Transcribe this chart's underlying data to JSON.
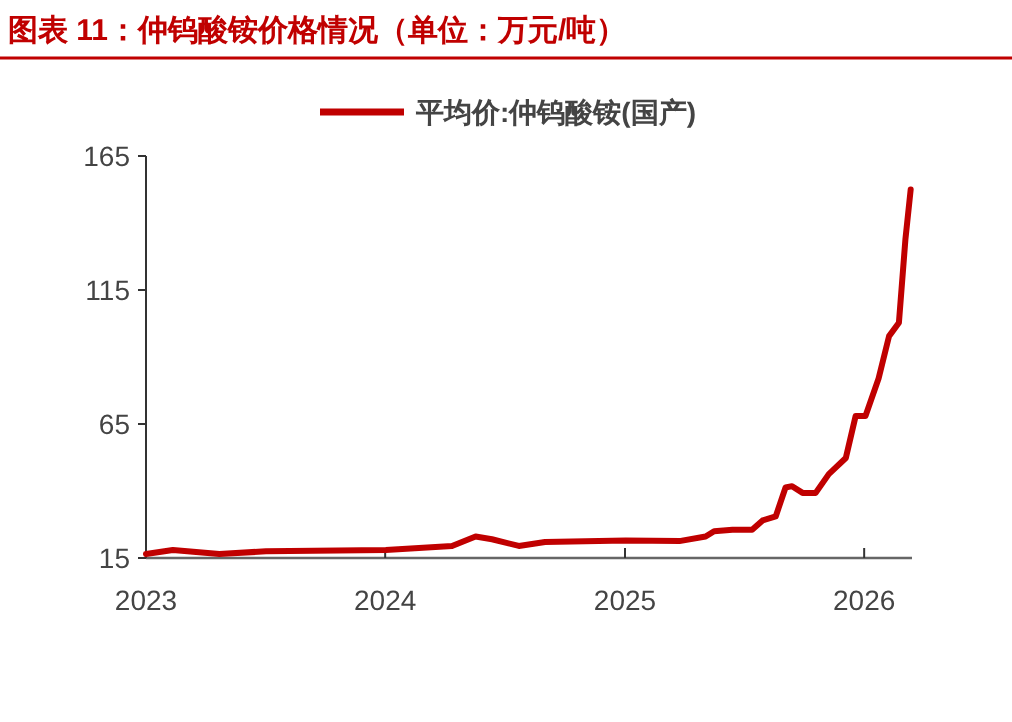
{
  "chart_data": {
    "type": "line",
    "title": "图表 11：仲钨酸铵价格情况（单位：万元/吨）",
    "x": [
      "2023-01-01",
      "2023-02-11",
      "2023-04-23",
      "2023-07-03",
      "2024-01-02",
      "2024-04-12",
      "2024-05-18",
      "2024-06-12",
      "2024-07-23",
      "2024-09-01",
      "2025-01-02",
      "2025-03-25",
      "2025-05-04",
      "2025-05-17",
      "2025-06-14",
      "2025-07-14",
      "2025-07-30",
      "2025-08-19",
      "2025-09-03",
      "2025-09-13",
      "2025-09-29",
      "2025-10-19",
      "2025-11-08",
      "2025-12-04",
      "2025-12-19",
      "2026-01-03",
      "2026-01-23",
      "2026-02-08",
      "2026-02-23",
      "2026-03-05",
      "2026-03-13"
    ],
    "series": [
      {
        "name": "平均价:仲钨酸铵(国产)",
        "color": "#c00000",
        "values": [
          16.5,
          18,
          16.5,
          17.5,
          18,
          19.5,
          23,
          22,
          19.5,
          21,
          21.5,
          21.3,
          23,
          25,
          25.5,
          25.5,
          29,
          30.5,
          41.3,
          41.8,
          39.3,
          39.3,
          46.3,
          52.3,
          68,
          68,
          82,
          97.8,
          102.8,
          134,
          152.5
        ]
      }
    ],
    "xlim": [
      "2023-01-01",
      "2026-03-15"
    ],
    "xticks": [
      "2023",
      "2024",
      "2025",
      "2026"
    ],
    "ylim": [
      15,
      165
    ],
    "yticks": [
      15,
      65,
      115,
      165
    ],
    "legend": "top",
    "grid": false
  }
}
